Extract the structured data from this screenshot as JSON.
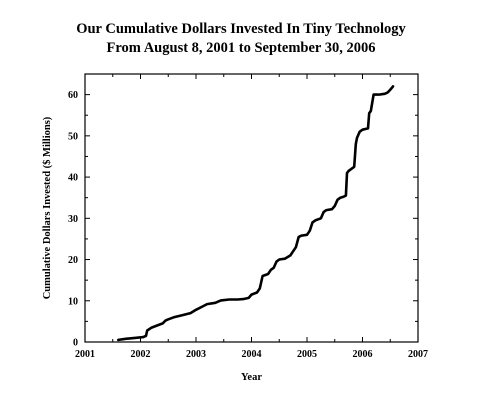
{
  "chart_data": {
    "type": "line",
    "title_line1": "Our Cumulative Dollars Invested In Tiny Technology",
    "title_line2": "From August 8, 2001 to September 30, 2006",
    "xlabel": "Year",
    "ylabel": "Cumulative Dollars Invested ($ Millions)",
    "xlim": [
      2001,
      2007
    ],
    "ylim": [
      0,
      65
    ],
    "x_ticks": [
      "2001",
      "2002",
      "2003",
      "2004",
      "2005",
      "2006",
      "2007"
    ],
    "y_ticks": [
      "0",
      "10",
      "20",
      "30",
      "40",
      "50",
      "60"
    ],
    "grid": false,
    "series": [
      {
        "color": "#000000",
        "x": [
          2001.6,
          2001.75,
          2001.9,
          2002.05,
          2002.1,
          2002.12,
          2002.2,
          2002.3,
          2002.4,
          2002.45,
          2002.5,
          2002.6,
          2002.75,
          2002.9,
          2003.0,
          2003.1,
          2003.2,
          2003.35,
          2003.4,
          2003.45,
          2003.6,
          2003.75,
          2003.85,
          2003.95,
          2004.0,
          2004.1,
          2004.15,
          2004.2,
          2004.3,
          2004.35,
          2004.4,
          2004.45,
          2004.5,
          2004.6,
          2004.7,
          2004.75,
          2004.8,
          2004.85,
          2004.9,
          2005.0,
          2005.05,
          2005.1,
          2005.15,
          2005.25,
          2005.3,
          2005.35,
          2005.45,
          2005.5,
          2005.55,
          2005.6,
          2005.65,
          2005.7,
          2005.72,
          2005.75,
          2005.85,
          2005.88,
          2005.9,
          2005.95,
          2006.0,
          2006.1,
          2006.12,
          2006.15,
          2006.2,
          2006.25,
          2006.3,
          2006.4,
          2006.45,
          2006.5,
          2006.55
        ],
        "y": [
          0.5,
          0.8,
          1.0,
          1.2,
          1.5,
          2.8,
          3.5,
          4.0,
          4.5,
          5.2,
          5.5,
          6.0,
          6.5,
          7.0,
          7.8,
          8.5,
          9.2,
          9.5,
          9.8,
          10.1,
          10.3,
          10.3,
          10.4,
          10.7,
          11.5,
          12.0,
          13.0,
          16.0,
          16.5,
          17.5,
          18.0,
          19.5,
          20.0,
          20.2,
          21.0,
          22.0,
          23.0,
          25.5,
          25.8,
          26.0,
          27.0,
          29.0,
          29.5,
          30.0,
          31.5,
          32.0,
          32.2,
          33.0,
          34.5,
          35.0,
          35.2,
          35.5,
          41.0,
          41.5,
          42.5,
          48.0,
          49.5,
          51.0,
          51.5,
          51.8,
          55.5,
          56.0,
          60.0,
          60.0,
          60.0,
          60.2,
          60.5,
          61.2,
          62.0
        ]
      }
    ]
  }
}
